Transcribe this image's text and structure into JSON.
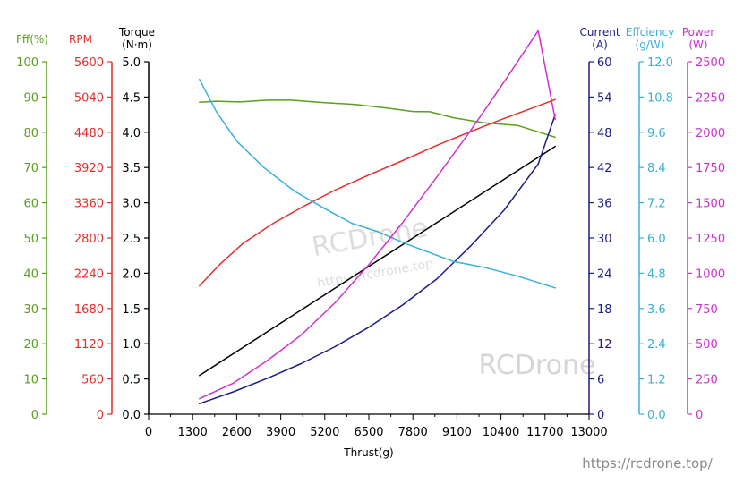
{
  "watermark": {
    "brand": "RCDrone",
    "url": "https://rcdrone.top/",
    "small": "https://rcdrone.top"
  },
  "chart_data": {
    "type": "line",
    "xlabel": "Thrust(g)",
    "xlim": [
      0,
      13000
    ],
    "xticks": [
      0,
      1300,
      2600,
      3900,
      5200,
      6500,
      7800,
      9100,
      10400,
      11700,
      13000
    ],
    "axes": [
      {
        "id": "eff",
        "label": "Fff(%)",
        "unit": "",
        "color": "#5a9e1e",
        "min": 0,
        "max": 100,
        "ticks": [
          "0",
          "10",
          "20",
          "30",
          "40",
          "50",
          "60",
          "70",
          "80",
          "90",
          "100"
        ]
      },
      {
        "id": "rpm",
        "label": "RPM",
        "unit": "",
        "color": "#e0302e",
        "min": 0,
        "max": 5600,
        "ticks": [
          "0",
          "560",
          "1120",
          "1680",
          "2240",
          "2800",
          "3360",
          "3920",
          "4480",
          "5040",
          "5600"
        ]
      },
      {
        "id": "torque",
        "label": "Torque",
        "unit": "(N·m)",
        "color": "#000000",
        "min": 0,
        "max": 5,
        "ticks": [
          "0.0",
          "0.5",
          "1.0",
          "1.5",
          "2.0",
          "2.5",
          "3.0",
          "3.5",
          "4.0",
          "4.5",
          "5.0"
        ]
      },
      {
        "id": "current",
        "label": "Current",
        "unit": "(A)",
        "color": "#1c1c84",
        "min": 0,
        "max": 60,
        "ticks": [
          "0",
          "6",
          "12",
          "18",
          "24",
          "30",
          "36",
          "42",
          "48",
          "54",
          "60"
        ]
      },
      {
        "id": "efficiency",
        "label": "Effciency",
        "unit": "(g/W)",
        "color": "#38b0d8",
        "min": 0,
        "max": 12,
        "ticks": [
          "0.0",
          "1.2",
          "2.4",
          "3.6",
          "4.8",
          "6.0",
          "7.2",
          "8.4",
          "9.6",
          "10.8",
          "12.0"
        ]
      },
      {
        "id": "power",
        "label": "Power",
        "unit": "(W)",
        "color": "#cc33cc",
        "min": 0,
        "max": 2500,
        "ticks": [
          "0",
          "250",
          "500",
          "750",
          "1000",
          "1250",
          "1500",
          "1750",
          "2000",
          "2250",
          "2500"
        ]
      }
    ],
    "series": [
      {
        "axis": "eff",
        "color": "#5a9e1e",
        "x": [
          1500,
          2000,
          2700,
          3500,
          4200,
          5200,
          6100,
          7000,
          7800,
          8300,
          9000,
          9900,
          10900,
          12000
        ],
        "y": [
          88.5,
          88.8,
          88.6,
          89.1,
          89.1,
          88.4,
          87.9,
          86.9,
          85.9,
          85.8,
          84.1,
          82.7,
          81.9,
          78.6
        ]
      },
      {
        "axis": "rpm",
        "color": "#e0302e",
        "x": [
          1500,
          2100,
          2800,
          3700,
          4600,
          5500,
          6500,
          7500,
          8500,
          9500,
          10500,
          11500,
          12000
        ],
        "y": [
          2040,
          2380,
          2720,
          3040,
          3310,
          3560,
          3800,
          4030,
          4270,
          4490,
          4700,
          4900,
          5000
        ]
      },
      {
        "axis": "torque",
        "color": "#000000",
        "x": [
          1500,
          12000
        ],
        "y": [
          0.55,
          3.8
        ]
      },
      {
        "axis": "current",
        "color": "#1c1c84",
        "x": [
          1500,
          2500,
          3500,
          4500,
          5500,
          6500,
          7500,
          8500,
          9500,
          10500,
          11500,
          12000
        ],
        "y": [
          1.8,
          3.8,
          6.1,
          8.6,
          11.5,
          14.8,
          18.6,
          23.0,
          28.6,
          34.8,
          42.6,
          51.0
        ]
      },
      {
        "axis": "efficiency",
        "color": "#38b0d8",
        "x": [
          1500,
          2000,
          2600,
          3400,
          4300,
          5200,
          6000,
          6800,
          7600,
          8300,
          9000,
          9900,
          10900,
          12000
        ],
        "y": [
          11.4,
          10.3,
          9.3,
          8.4,
          7.6,
          7.0,
          6.5,
          6.2,
          5.8,
          5.5,
          5.2,
          5.0,
          4.7,
          4.3
        ]
      },
      {
        "axis": "power",
        "color": "#cc33cc",
        "x": [
          1500,
          2500,
          3500,
          4500,
          5500,
          6500,
          7500,
          8500,
          9500,
          10500,
          11500,
          12000
        ],
        "y": [
          110,
          220,
          380,
          560,
          790,
          1060,
          1360,
          1680,
          2010,
          2360,
          2720,
          2090
        ]
      }
    ]
  }
}
